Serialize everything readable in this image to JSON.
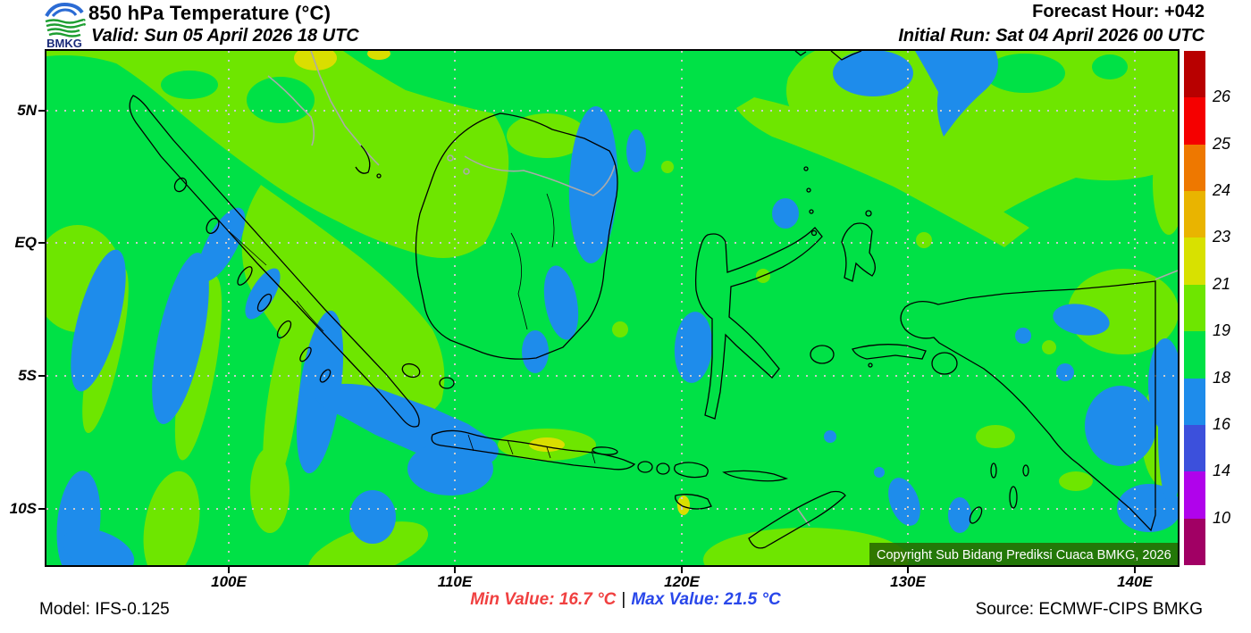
{
  "header": {
    "title": "850 hPa Temperature (°C)",
    "valid": "Valid: Sun 05 April 2026 18 UTC",
    "forecast_hour": "Forecast Hour: +042",
    "initial_run": "Initial Run: Sat 04 April 2026 00 UTC",
    "logo_text": "BMKG"
  },
  "map": {
    "copyright": "Copyright Sub Bidang Prediksi Cuaca BMKG, 2026",
    "lat_labels": [
      "5N",
      "EQ",
      "5S",
      "10S"
    ],
    "lon_labels": [
      "100E",
      "110E",
      "120E",
      "130E",
      "140E"
    ]
  },
  "colorbar": {
    "boundary_labels": [
      "26",
      "25",
      "24",
      "23",
      "21",
      "19",
      "18",
      "16",
      "14",
      "10"
    ],
    "segment_colors_top_to_bottom": [
      "#b80000",
      "#f50000",
      "#ee7800",
      "#e9b400",
      "#d8e100",
      "#6ee600",
      "#00e146",
      "#1e8ceb",
      "#3c50dc",
      "#b003eb",
      "#a10064"
    ]
  },
  "footer": {
    "model": "Model: IFS-0.125",
    "min_value": "Min Value: 16.7 °C",
    "separator": "|",
    "max_value": "Max Value: 21.5 °C",
    "source": "Source: ECMWF-CIPS BMKG"
  },
  "palette": {
    "map_green": "#00e146",
    "map_chartreuse": "#6ee600",
    "map_blue": "#1e8ceb",
    "map_yellow": "#dade00",
    "grid_gray": "#cccccc",
    "border_gray": "#aaaaaa",
    "min_value_color": "#f04040",
    "max_value_color": "#2947ea",
    "copyright_bg": "rgba(40,105,0,0.88)",
    "logo_blue": "#2b6bd4",
    "logo_green": "#1d9e31",
    "logo_navy": "#1a2a7a"
  }
}
